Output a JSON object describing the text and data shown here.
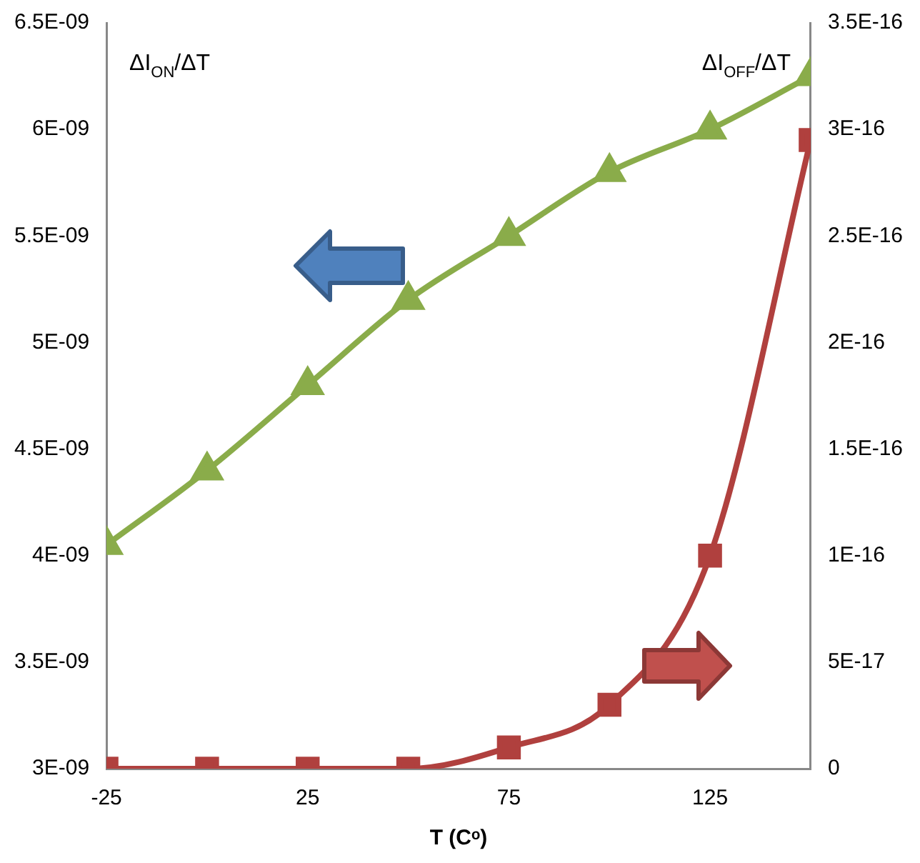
{
  "chart_data": {
    "type": "line",
    "xlabel": "T (Cᵒ)",
    "ylabel": "ΔI$_{ON}$/ΔT",
    "y2label": "ΔI$_{OFF}$/ΔT",
    "x": [
      -25,
      0,
      25,
      50,
      75,
      100,
      125,
      150
    ],
    "series": [
      {
        "color": "#8aac4a",
        "marker": "triangle",
        "values": [
          4.05e-09,
          4.4e-09,
          4.8e-09,
          5.2e-09,
          5.5e-09,
          5.8e-09,
          6e-09,
          6.25e-09
        ]
      },
      {
        "color": "#b0403e",
        "marker": "square",
        "axis": "y2",
        "values": [
          0,
          0,
          0,
          0,
          1e-17,
          3e-17,
          1e-16,
          2.95e-16
        ]
      }
    ],
    "xlim": [
      -25,
      150
    ],
    "xticks": [
      -25,
      25,
      75,
      125
    ],
    "ylim": [
      3e-09,
      6.5e-09
    ],
    "yticks": [
      {
        "value": 3e-09,
        "label": "3E-09"
      },
      {
        "value": 3.5e-09,
        "label": "3.5E-09"
      },
      {
        "value": 4e-09,
        "label": "4E-09"
      },
      {
        "value": 4.5e-09,
        "label": "4.5E-09"
      },
      {
        "value": 5e-09,
        "label": "5E-09"
      },
      {
        "value": 5.5e-09,
        "label": "5.5E-09"
      },
      {
        "value": 6e-09,
        "label": "6E-09"
      },
      {
        "value": 6.5e-09,
        "label": "6.5E-09"
      }
    ],
    "y2lim": [
      0,
      3.5e-16
    ],
    "y2ticks": [
      0,
      {
        "value": 5e-17,
        "label": "5E-17"
      },
      {
        "value": 1e-16,
        "label": "1E-16"
      },
      {
        "value": 1.5e-16,
        "label": "1.5E-16"
      },
      {
        "value": 2e-16,
        "label": "2E-16"
      },
      {
        "value": 2.5e-16,
        "label": "2.5E-16"
      },
      {
        "value": 3e-16,
        "label": "3E-16"
      },
      {
        "value": 3.5e-16,
        "label": "3.5E-16"
      }
    ],
    "grid": false,
    "legend": false
  }
}
